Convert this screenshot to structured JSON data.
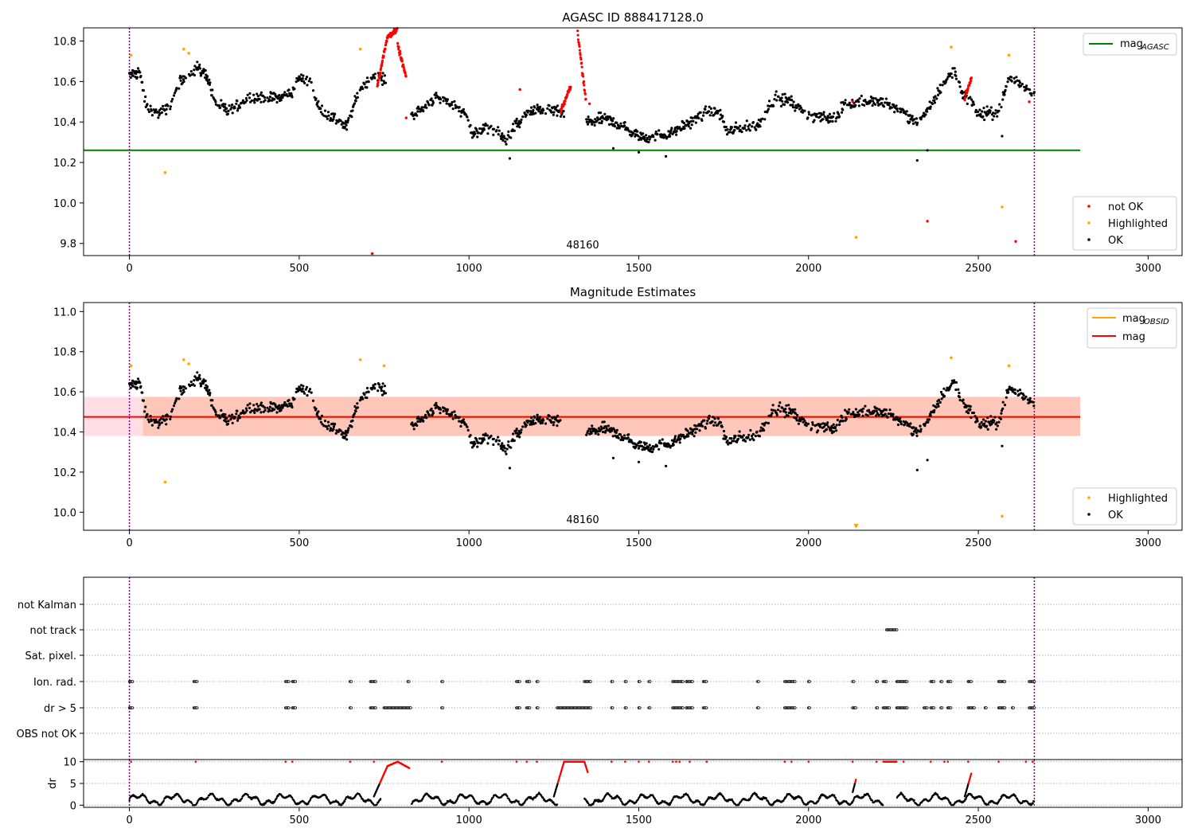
{
  "chart_data": [
    {
      "type": "scatter",
      "title": "AGASC ID 888417128.0",
      "xlabel": "",
      "ylabel": "",
      "xlim": [
        -135,
        3100
      ],
      "ylim": [
        9.74,
        10.865
      ],
      "xticks": [
        0,
        500,
        1000,
        1500,
        2000,
        2500,
        3000
      ],
      "yticks": [
        9.8,
        10.0,
        10.2,
        10.4,
        10.6,
        10.8
      ],
      "ytick_labels": [
        "9.8",
        "10.0",
        "10.2",
        "10.4",
        "10.6",
        "10.8"
      ],
      "annotation": "48160",
      "annotation_x": 1330,
      "vlines": [
        0,
        2665
      ],
      "hline": {
        "name": "mag_AGASC",
        "y": 10.26,
        "x_range": [
          -135,
          2800
        ],
        "color": "#008000"
      },
      "legend_lines": [
        {
          "label": "mag",
          "sub": "AGASC",
          "color": "#008000"
        }
      ],
      "legend_points": [
        {
          "label": "not OK",
          "color": "#ff0000"
        },
        {
          "label": "Highlighted",
          "color": "#ffa500"
        },
        {
          "label": "OK",
          "color": "#000000"
        }
      ],
      "series": [
        {
          "name": "OK",
          "color": "#000000",
          "segments": [
            [
              0,
              10.63
            ],
            [
              30,
              10.65
            ],
            [
              50,
              10.47
            ],
            [
              90,
              10.44
            ],
            [
              120,
              10.48
            ],
            [
              150,
              10.6
            ],
            [
              200,
              10.67
            ],
            [
              230,
              10.63
            ],
            [
              250,
              10.5
            ],
            [
              290,
              10.45
            ],
            [
              350,
              10.52
            ],
            [
              450,
              10.52
            ],
            [
              480,
              10.55
            ],
            [
              500,
              10.62
            ],
            [
              530,
              10.6
            ],
            [
              560,
              10.46
            ],
            [
              600,
              10.42
            ],
            [
              640,
              10.38
            ],
            [
              680,
              10.57
            ],
            [
              720,
              10.63
            ],
            [
              760,
              10.6
            ],
            [
              820,
              10.43
            ],
            [
              850,
              10.45
            ],
            [
              900,
              10.52
            ],
            [
              960,
              10.48
            ],
            [
              1000,
              10.42
            ],
            [
              1010,
              10.34
            ],
            [
              1060,
              10.37
            ],
            [
              1110,
              10.31
            ],
            [
              1130,
              10.37
            ],
            [
              1180,
              10.45
            ],
            [
              1230,
              10.46
            ],
            [
              1260,
              10.45
            ],
            [
              1350,
              10.4
            ],
            [
              1400,
              10.42
            ],
            [
              1450,
              10.38
            ],
            [
              1500,
              10.33
            ],
            [
              1550,
              10.33
            ],
            [
              1600,
              10.35
            ],
            [
              1700,
              10.45
            ],
            [
              1740,
              10.45
            ],
            [
              1760,
              10.35
            ],
            [
              1800,
              10.37
            ],
            [
              1850,
              10.38
            ],
            [
              1900,
              10.52
            ],
            [
              1950,
              10.5
            ],
            [
              2000,
              10.43
            ],
            [
              2080,
              10.42
            ],
            [
              2100,
              10.48
            ],
            [
              2150,
              10.5
            ],
            [
              2200,
              10.5
            ],
            [
              2250,
              10.48
            ],
            [
              2290,
              10.43
            ],
            [
              2320,
              10.4
            ],
            [
              2350,
              10.45
            ],
            [
              2400,
              10.6
            ],
            [
              2430,
              10.65
            ],
            [
              2450,
              10.55
            ],
            [
              2480,
              10.5
            ],
            [
              2500,
              10.44
            ],
            [
              2560,
              10.45
            ],
            [
              2590,
              10.62
            ],
            [
              2610,
              10.6
            ],
            [
              2665,
              10.54
            ]
          ],
          "spread": 0.025
        },
        {
          "name": "not OK",
          "color": "#ff0000",
          "segments": [
            [
              730,
              10.58
            ],
            [
              760,
              10.8
            ],
            [
              790,
              10.85
            ],
            [
              820,
              10.6
            ],
            [
              1270,
              10.48
            ],
            [
              1300,
              10.58
            ],
            [
              1320,
              10.83
            ],
            [
              1340,
              10.5
            ],
            [
              1360,
              10.5
            ],
            [
              2460,
              10.58
            ],
            [
              2480,
              10.6
            ],
            [
              2350,
              9.91
            ],
            [
              2610,
              9.81
            ],
            [
              715,
              9.75
            ],
            [
              815,
              10.42
            ],
            [
              1150,
              10.56
            ],
            [
              2130,
              10.5
            ],
            [
              2650,
              10.5
            ]
          ],
          "spread": 0.012
        },
        {
          "name": "Highlighted",
          "color": "#ffa500",
          "points": [
            [
              5,
              10.73
            ],
            [
              105,
              10.15
            ],
            [
              160,
              10.76
            ],
            [
              175,
              10.74
            ],
            [
              680,
              10.76
            ],
            [
              2140,
              9.83
            ],
            [
              2420,
              10.77
            ],
            [
              2570,
              9.98
            ],
            [
              2590,
              10.73
            ]
          ]
        }
      ],
      "grid": false,
      "legend": "top-right, bottom-right"
    },
    {
      "type": "scatter",
      "title": "Magnitude Estimates",
      "xlabel": "",
      "ylabel": "",
      "xlim": [
        -135,
        3100
      ],
      "ylim": [
        9.91,
        11.045
      ],
      "xticks": [
        0,
        500,
        1000,
        1500,
        2000,
        2500,
        3000
      ],
      "yticks": [
        10.0,
        10.2,
        10.4,
        10.6,
        10.8,
        11.0
      ],
      "ytick_labels": [
        "10.0",
        "10.2",
        "10.4",
        "10.6",
        "10.8",
        "11.0"
      ],
      "annotation": "48160",
      "annotation_x": 1330,
      "vlines": [
        0,
        2665
      ],
      "hline": {
        "name": "mag",
        "y": 10.475,
        "x_range": [
          -135,
          2800
        ],
        "color": "#ff0000"
      },
      "obsid_line": {
        "name": "mag_OBSID",
        "y": 10.475,
        "x_range": [
          40,
          2800
        ],
        "color": "#ffa500"
      },
      "band": {
        "y_low": 10.38,
        "y_high": 10.575,
        "x_range": [
          -135,
          2800
        ]
      },
      "legend_lines": [
        {
          "label": "mag",
          "sub": "OBSID",
          "color": "#ffa500"
        },
        {
          "label": "mag",
          "sub": "",
          "color": "#ff0000"
        }
      ],
      "legend_points": [
        {
          "label": "Highlighted",
          "color": "#ffa500"
        },
        {
          "label": "OK",
          "color": "#000000"
        }
      ],
      "series": [
        {
          "name": "Highlighted",
          "color": "#ffa500",
          "points": [
            [
              5,
              10.73
            ],
            [
              105,
              10.15
            ],
            [
              160,
              10.76
            ],
            [
              175,
              10.74
            ],
            [
              680,
              10.76
            ],
            [
              750,
              10.73
            ],
            [
              2140,
              9.92
            ],
            [
              2420,
              10.77
            ],
            [
              2570,
              9.98
            ],
            [
              2590,
              10.73
            ]
          ]
        }
      ],
      "grid": false,
      "legend": "top-right, bottom-right"
    },
    {
      "type": "scatter",
      "title": "",
      "xlabel": "",
      "ylabel": "",
      "categories": [
        "not Kalman",
        "not track",
        "Sat. pixel.",
        "Ion. rad.",
        "dr > 5",
        "OBS not OK"
      ],
      "xlim": [
        -135,
        3100
      ],
      "vlines": [
        0,
        2665
      ],
      "flags": {
        "not track": [
          [
            2230,
            2260
          ]
        ],
        "Ion. rad.": [
          [
            0,
            10
          ],
          [
            190,
            200
          ],
          [
            460,
            470
          ],
          [
            480,
            490
          ],
          [
            650,
            655
          ],
          [
            710,
            725
          ],
          [
            820,
            825
          ],
          [
            920,
            925
          ],
          [
            1140,
            1150
          ],
          [
            1170,
            1180
          ],
          [
            1200,
            1205
          ],
          [
            1340,
            1360
          ],
          [
            1420,
            1425
          ],
          [
            1460,
            1465
          ],
          [
            1500,
            1505
          ],
          [
            1530,
            1535
          ],
          [
            1600,
            1630
          ],
          [
            1640,
            1660
          ],
          [
            1690,
            1700
          ],
          [
            1850,
            1855
          ],
          [
            1930,
            1960
          ],
          [
            2000,
            2005
          ],
          [
            2130,
            2135
          ],
          [
            2200,
            2205
          ],
          [
            2220,
            2230
          ],
          [
            2260,
            2290
          ],
          [
            2360,
            2370
          ],
          [
            2390,
            2395
          ],
          [
            2410,
            2420
          ],
          [
            2470,
            2480
          ],
          [
            2560,
            2580
          ],
          [
            2650,
            2665
          ]
        ],
        "dr > 5": [
          [
            0,
            10
          ],
          [
            190,
            200
          ],
          [
            460,
            470
          ],
          [
            480,
            490
          ],
          [
            650,
            655
          ],
          [
            710,
            725
          ],
          [
            750,
            830
          ],
          [
            920,
            925
          ],
          [
            1140,
            1150
          ],
          [
            1170,
            1180
          ],
          [
            1200,
            1205
          ],
          [
            1260,
            1360
          ],
          [
            1420,
            1425
          ],
          [
            1460,
            1465
          ],
          [
            1500,
            1505
          ],
          [
            1530,
            1535
          ],
          [
            1600,
            1630
          ],
          [
            1640,
            1660
          ],
          [
            1690,
            1700
          ],
          [
            1850,
            1855
          ],
          [
            1930,
            1960
          ],
          [
            2000,
            2005
          ],
          [
            2130,
            2140
          ],
          [
            2200,
            2205
          ],
          [
            2220,
            2240
          ],
          [
            2260,
            2290
          ],
          [
            2340,
            2350
          ],
          [
            2360,
            2370
          ],
          [
            2390,
            2395
          ],
          [
            2410,
            2420
          ],
          [
            2470,
            2490
          ],
          [
            2520,
            2525
          ],
          [
            2560,
            2580
          ],
          [
            2600,
            2605
          ],
          [
            2650,
            2665
          ]
        ]
      }
    },
    {
      "type": "line",
      "title": "",
      "xlabel": "",
      "ylabel": "dr",
      "xlim": [
        -135,
        3100
      ],
      "ylim": [
        -0.5,
        10.5
      ],
      "xticks": [
        0,
        500,
        1000,
        1500,
        2000,
        2500,
        3000
      ],
      "yticks": [
        0,
        5,
        10
      ],
      "ytick_labels": [
        "0",
        "5",
        "10"
      ],
      "vlines": [
        0,
        2665
      ],
      "threshold": 5,
      "red_segments": [
        [
          740,
          830,
          10
        ],
        [
          1260,
          1340,
          10
        ],
        [
          2220,
          2260,
          10
        ]
      ],
      "red_ramps": [
        [
          720,
          760
        ],
        [
          1250,
          1280
        ],
        [
          2460,
          2480
        ],
        [
          2130,
          2140
        ]
      ]
    }
  ]
}
